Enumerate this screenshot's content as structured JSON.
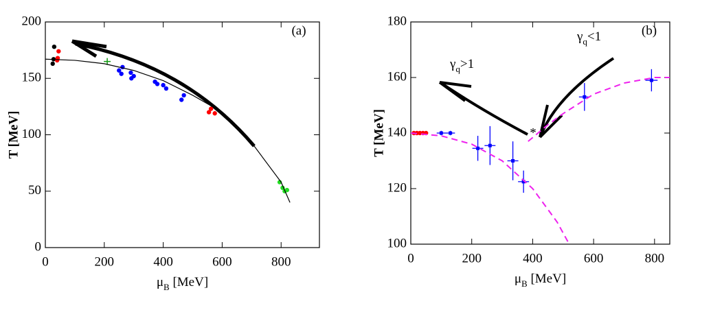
{
  "chart_data": [
    {
      "type": "scatter",
      "panel_label": "(a)",
      "x_label": [
        "μ",
        "B",
        " [MeV]"
      ],
      "y_label": "T [MeV]",
      "xlim": [
        0,
        930
      ],
      "xticks": [
        0,
        200,
        400,
        600,
        800
      ],
      "ylim": [
        0,
        200
      ],
      "yticks": [
        0,
        50,
        100,
        150,
        200
      ],
      "series": [
        {
          "color": "#000000",
          "marker": "circle",
          "x": [
            25,
            28,
            30
          ],
          "values": [
            163,
            167,
            178
          ]
        },
        {
          "color": "#ff0000",
          "marker": "circle",
          "x": [
            40,
            45,
            42
          ],
          "values": [
            166,
            174,
            168
          ]
        },
        {
          "color": "#119911",
          "marker": "plus",
          "x": [
            210
          ],
          "values": [
            165
          ]
        },
        {
          "color": "#0000ff",
          "marker": "circle",
          "x": [
            250,
            258,
            262,
            290,
            292,
            300,
            372,
            380,
            400,
            410,
            462,
            470
          ],
          "values": [
            157,
            154,
            160,
            155,
            150,
            152,
            147,
            145,
            144,
            141,
            131,
            135
          ]
        },
        {
          "color": "#ff0000",
          "marker": "circle",
          "x": [
            555,
            562,
            575
          ],
          "values": [
            120,
            123,
            119
          ]
        },
        {
          "color": "#22dd22",
          "marker": "circle",
          "x": [
            795,
            805,
            812,
            820
          ],
          "values": [
            58,
            53,
            50,
            51
          ]
        },
        {
          "type": "line",
          "color": "#000000",
          "linestyle": "solid",
          "x": [
            0,
            100,
            200,
            300,
            400,
            500,
            600,
            700,
            800,
            830
          ],
          "values": [
            167,
            166,
            163,
            157,
            148,
            135,
            120,
            93,
            58,
            40
          ]
        }
      ]
    },
    {
      "type": "scatter",
      "panel_label": "(b)",
      "x_label": [
        "μ",
        "B",
        " [MeV]"
      ],
      "y_label": "T [MeV]",
      "annotations": [
        [
          "γ",
          "q",
          ">1"
        ],
        [
          "γ",
          "q",
          "<1"
        ],
        "*"
      ],
      "xlim": [
        0,
        850
      ],
      "xticks": [
        0,
        200,
        400,
        600,
        800
      ],
      "ylim": [
        100,
        180
      ],
      "yticks": [
        100,
        120,
        140,
        160,
        180
      ],
      "series": [
        {
          "color": "#ff0000",
          "marker": "circle",
          "x": [
            10,
            20,
            30,
            40,
            50
          ],
          "values": [
            140,
            140,
            140,
            140,
            140
          ]
        },
        {
          "color": "#0000ff",
          "marker": "square",
          "x": [
            100,
            130,
            220,
            260,
            335,
            370,
            570,
            790
          ],
          "values": [
            140,
            140,
            134.5,
            135.5,
            130,
            122.5,
            153,
            159
          ],
          "xerr": [
            15,
            15,
            18,
            18,
            18,
            18,
            18,
            20
          ],
          "yerr": [
            0.8,
            0.8,
            4.5,
            7,
            7,
            4,
            5,
            4
          ]
        },
        {
          "type": "line",
          "color": "#ee22ee",
          "linestyle": "dashed",
          "x": [
            0,
            100,
            200,
            300,
            400,
            480,
            520
          ],
          "values": [
            140,
            139,
            136,
            130,
            120,
            108,
            100
          ]
        },
        {
          "type": "line",
          "color": "#ee22ee",
          "linestyle": "dashed",
          "x": [
            385,
            450,
            500,
            600,
            700,
            800,
            850
          ],
          "values": [
            137,
            143,
            147,
            154,
            158,
            160,
            160
          ]
        }
      ]
    }
  ]
}
